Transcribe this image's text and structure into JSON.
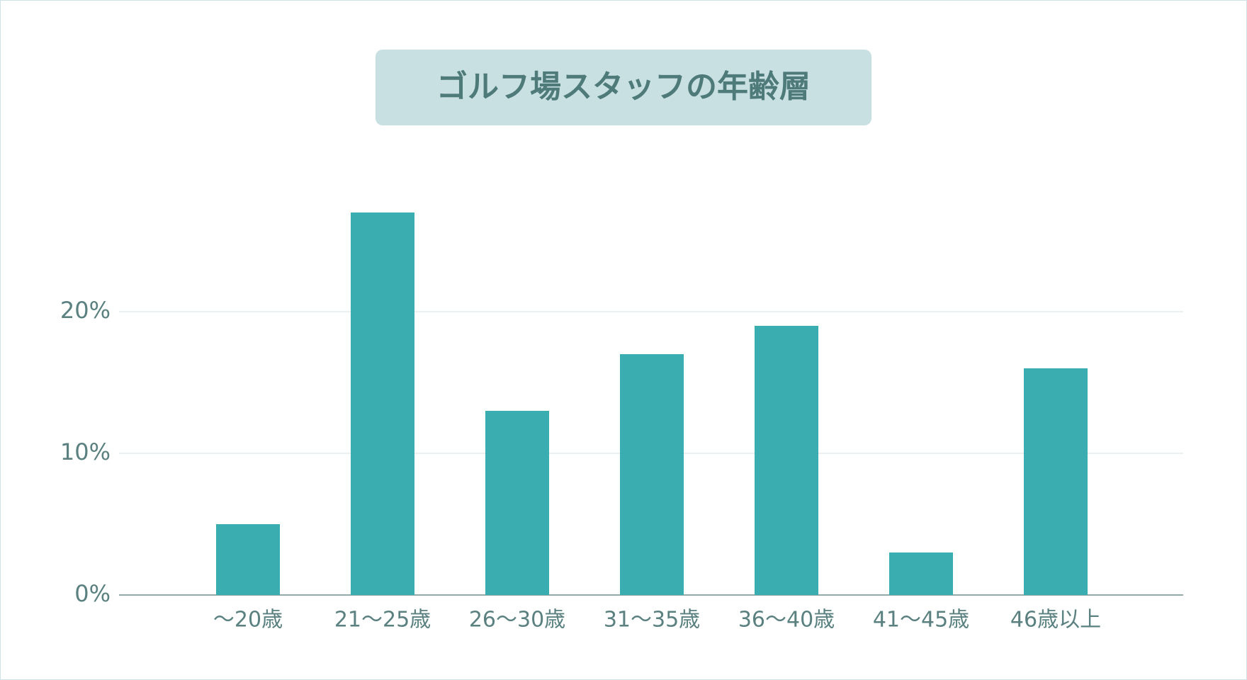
{
  "chart_data": {
    "type": "bar",
    "title": "ゴルフ場スタッフの年齢層",
    "categories": [
      "〜20歳",
      "21〜25歳",
      "26〜30歳",
      "31〜35歳",
      "36〜40歳",
      "41〜45歳",
      "46歳以上"
    ],
    "values": [
      5,
      27,
      13,
      17,
      19,
      3,
      16
    ],
    "color": "#3aadb1",
    "ylim": [
      0,
      30
    ],
    "yticks": [
      {
        "value": 0,
        "label": "0%"
      },
      {
        "value": 10,
        "label": "10%"
      },
      {
        "value": 20,
        "label": "20%"
      }
    ],
    "grid": true
  }
}
